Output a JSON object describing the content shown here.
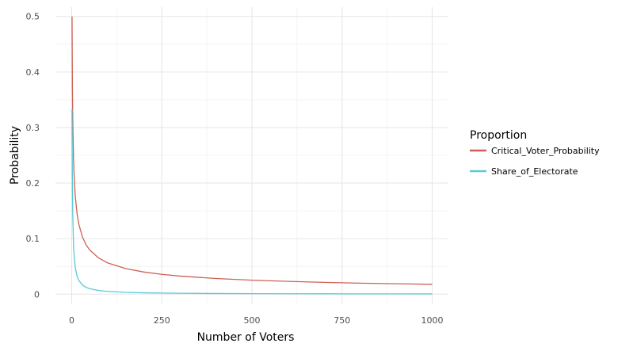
{
  "chart_data": {
    "type": "line",
    "title": "",
    "xlabel": "Number of Voters",
    "ylabel": "Probability",
    "xlim": [
      -45,
      1045
    ],
    "ylim": [
      -0.0167,
      0.5167
    ],
    "x_ticks": [
      0,
      250,
      500,
      750,
      1000
    ],
    "x_tick_labels": [
      "0",
      "250",
      "500",
      "750",
      "1000"
    ],
    "y_ticks": [
      0,
      0.1,
      0.2,
      0.3,
      0.4,
      0.5
    ],
    "y_tick_labels": [
      "0",
      "0.1",
      "0.2",
      "0.3",
      "0.4",
      "0.5"
    ],
    "grid": true,
    "legend_title": "Proportion",
    "legend_position": "right",
    "series": [
      {
        "name": "Critical_Voter_Probability",
        "color": "#cd6155",
        "x": [
          1,
          2,
          3,
          5,
          7,
          10,
          15,
          20,
          30,
          40,
          50,
          75,
          100,
          150,
          200,
          250,
          300,
          400,
          500,
          600,
          700,
          800,
          900,
          1000
        ],
        "values": [
          0.5,
          0.375,
          0.3125,
          0.246,
          0.2095,
          0.176,
          0.1445,
          0.1254,
          0.1026,
          0.0889,
          0.0796,
          0.065,
          0.0563,
          0.046,
          0.0399,
          0.0357,
          0.0326,
          0.0282,
          0.0252,
          0.023,
          0.0213,
          0.0199,
          0.0188,
          0.0178
        ]
      },
      {
        "name": "Share_of_Electorate",
        "color": "#5bc8d4",
        "x": [
          1,
          2,
          3,
          5,
          7,
          10,
          15,
          20,
          30,
          40,
          50,
          75,
          100,
          150,
          200,
          250,
          300,
          400,
          500,
          600,
          700,
          800,
          900,
          1000
        ],
        "values": [
          0.333,
          0.2,
          0.143,
          0.0909,
          0.0667,
          0.0476,
          0.0323,
          0.0244,
          0.0164,
          0.0123,
          0.0099,
          0.0066,
          0.005,
          0.0033,
          0.0025,
          0.002,
          0.0017,
          0.0012,
          0.001,
          0.0008,
          0.0007,
          0.0006,
          0.0006,
          0.0005
        ]
      }
    ]
  }
}
